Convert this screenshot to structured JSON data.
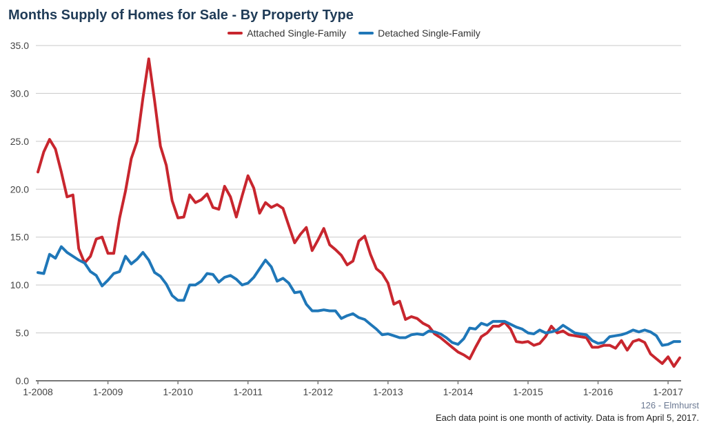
{
  "title": "Months Supply of Homes for Sale - By Property Type",
  "source_label": "126 - Elmhurst",
  "footnote": "Each data point is one month of activity. Data is from April 5, 2017.",
  "chart_data": {
    "type": "line",
    "title": "Months Supply of Homes for Sale - By Property Type",
    "xlabel": "",
    "ylabel": "",
    "ylim": [
      0,
      35
    ],
    "yticks": [
      "0.0",
      "5.0",
      "10.0",
      "15.0",
      "20.0",
      "25.0",
      "30.0",
      "35.0"
    ],
    "xticks": [
      "1-2008",
      "1-2009",
      "1-2010",
      "1-2011",
      "1-2012",
      "1-2013",
      "1-2014",
      "1-2015",
      "1-2016",
      "1-2017"
    ],
    "x_start": "1-2008",
    "x_end": "3-2017",
    "grid": true,
    "legend_position": "top-center",
    "series": [
      {
        "name": "Attached Single-Family",
        "color": "#c8262e",
        "values": [
          21.8,
          23.9,
          25.2,
          24.2,
          21.8,
          19.2,
          19.4,
          13.8,
          12.3,
          13.0,
          14.8,
          15.0,
          13.3,
          13.3,
          17.0,
          19.8,
          23.2,
          25.0,
          29.5,
          33.6,
          29.2,
          24.5,
          22.5,
          18.8,
          17.0,
          17.1,
          19.4,
          18.6,
          18.9,
          19.5,
          18.1,
          17.9,
          20.3,
          19.2,
          17.1,
          19.3,
          21.4,
          20.1,
          17.5,
          18.6,
          18.1,
          18.4,
          18.0,
          16.2,
          14.4,
          15.3,
          16.0,
          13.6,
          14.7,
          15.9,
          14.2,
          13.7,
          13.1,
          12.1,
          12.5,
          14.6,
          15.1,
          13.2,
          11.7,
          11.2,
          10.2,
          8.0,
          8.3,
          6.4,
          6.7,
          6.5,
          6.0,
          5.7,
          4.9,
          4.5,
          4.0,
          3.5,
          3.0,
          2.7,
          2.3,
          3.5,
          4.6,
          5.0,
          5.7,
          5.7,
          6.1,
          5.4,
          4.1,
          4.0,
          4.1,
          3.7,
          3.9,
          4.6,
          5.7,
          5.0,
          5.2,
          4.8,
          4.7,
          4.6,
          4.5,
          3.5,
          3.5,
          3.7,
          3.7,
          3.4,
          4.2,
          3.2,
          4.1,
          4.3,
          4.0,
          2.8,
          2.3,
          1.8,
          2.5,
          1.5,
          2.4
        ]
      },
      {
        "name": "Detached Single-Family",
        "color": "#1f77b8",
        "values": [
          11.3,
          11.2,
          13.2,
          12.8,
          14.0,
          13.4,
          13.0,
          12.6,
          12.3,
          11.4,
          11.0,
          9.9,
          10.5,
          11.2,
          11.4,
          13.0,
          12.2,
          12.7,
          13.4,
          12.6,
          11.3,
          10.9,
          10.1,
          8.9,
          8.4,
          8.4,
          10.0,
          10.0,
          10.4,
          11.2,
          11.1,
          10.3,
          10.8,
          11.0,
          10.6,
          10.0,
          10.2,
          10.8,
          11.7,
          12.6,
          11.9,
          10.4,
          10.7,
          10.2,
          9.2,
          9.3,
          8.0,
          7.3,
          7.3,
          7.4,
          7.3,
          7.3,
          6.5,
          6.8,
          7.0,
          6.6,
          6.4,
          5.9,
          5.4,
          4.8,
          4.9,
          4.7,
          4.5,
          4.5,
          4.8,
          4.9,
          4.8,
          5.2,
          5.1,
          4.9,
          4.5,
          4.0,
          3.8,
          4.4,
          5.5,
          5.4,
          6.0,
          5.8,
          6.2,
          6.2,
          6.2,
          5.9,
          5.6,
          5.4,
          5.0,
          4.9,
          5.3,
          5.0,
          5.1,
          5.3,
          5.8,
          5.4,
          5.0,
          4.9,
          4.8,
          4.2,
          3.9,
          4.0,
          4.6,
          4.7,
          4.8,
          5.0,
          5.3,
          5.1,
          5.3,
          5.1,
          4.7,
          3.7,
          3.8,
          4.1,
          4.1
        ]
      }
    ]
  }
}
